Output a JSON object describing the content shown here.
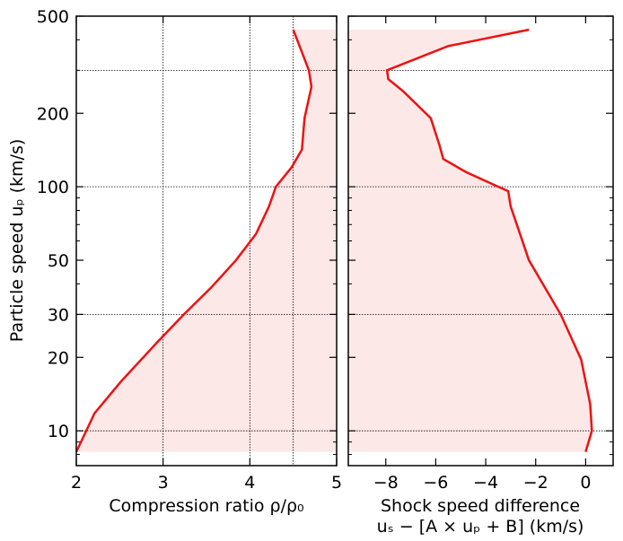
{
  "chart_data": [
    {
      "type": "line",
      "xlabel": "Compression ratio ρ/ρ₀",
      "ylabel": "Particle speed uₚ (km/s)",
      "xlim": [
        2,
        5
      ],
      "xticks": [
        2,
        3,
        4,
        5
      ],
      "ylim": [
        7.2,
        500
      ],
      "log_y": true,
      "yticks": [
        10,
        20,
        30,
        50,
        100,
        200,
        500
      ],
      "yminorticks": [
        8,
        9,
        40,
        60,
        70,
        80,
        90,
        300,
        400
      ],
      "hgrid": [
        10,
        30,
        100,
        300
      ],
      "vgrid": [
        3,
        4,
        4.5
      ],
      "fill_to": "right",
      "fill_color": "#fde8e8",
      "series": [
        {
          "color": "#ee1111",
          "x": [
            4.5,
            4.68,
            4.71,
            4.63,
            4.6,
            4.48,
            4.3,
            4.22,
            4.07,
            3.84,
            3.55,
            3.24,
            2.93,
            2.52,
            2.21,
            2.0
          ],
          "y": [
            440,
            300,
            257,
            191,
            142,
            120,
            100,
            83,
            64,
            50,
            38.5,
            30,
            23,
            16,
            11.8,
            8.2
          ]
        }
      ]
    },
    {
      "type": "line",
      "xlabel": [
        "Shock speed difference",
        "uₛ − [A × uₚ + B] (km/s)"
      ],
      "xlim": [
        -9.5,
        1.1
      ],
      "xticks": [
        {
          "value": -8,
          "label": "−8"
        },
        {
          "value": -6,
          "label": "−6"
        },
        {
          "value": -4,
          "label": "−4"
        },
        {
          "value": -2,
          "label": "−2"
        },
        0
      ],
      "ylim": [
        7.2,
        500
      ],
      "log_y": true,
      "hgrid": [
        10,
        30,
        100,
        300
      ],
      "fill_to": "left",
      "fill_color": "#fde8e8",
      "series": [
        {
          "color": "#ee1111",
          "x": [
            -2.27,
            -5.5,
            -7.95,
            -7.9,
            -7.3,
            -6.2,
            -5.85,
            -5.7,
            -4.8,
            -3.5,
            -3.1,
            -3.0,
            -2.27,
            -1.0,
            -0.18,
            0.18,
            0.25,
            0.0
          ],
          "y": [
            440,
            377,
            300,
            276,
            246,
            191,
            148,
            130,
            115,
            100,
            96,
            83,
            50,
            30,
            19.6,
            12.9,
            10,
            8.2
          ]
        }
      ]
    }
  ]
}
